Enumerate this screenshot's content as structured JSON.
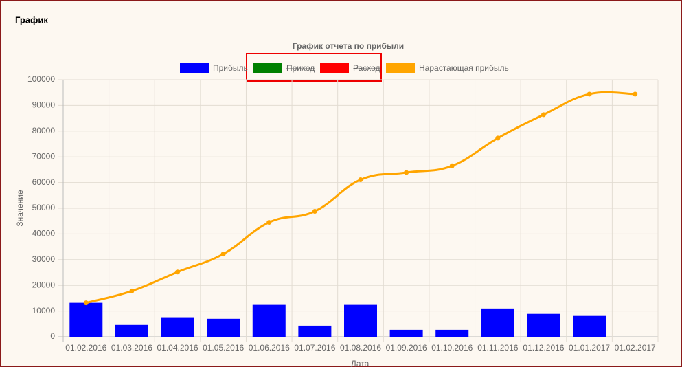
{
  "header": {
    "title": "График"
  },
  "chart_data": {
    "type": "bar",
    "title": "График отчета по прибыли",
    "x_label": "Дата",
    "y_label": "Значение",
    "categories": [
      "01.02.2016",
      "01.03.2016",
      "01.04.2016",
      "01.05.2016",
      "01.06.2016",
      "01.07.2016",
      "01.08.2016",
      "01.09.2016",
      "01.10.2016",
      "01.11.2016",
      "01.12.2016",
      "01.01.2017",
      "01.02.2017"
    ],
    "series": [
      {
        "name": "Прибыль",
        "color": "#0000ff",
        "type": "bar",
        "values": [
          13200,
          4600,
          7600,
          7000,
          12400,
          4300,
          12400,
          2700,
          2700,
          11000,
          8900,
          8100,
          0
        ]
      },
      {
        "name": "Приход",
        "color": "#008000",
        "type": "bar",
        "hidden": true,
        "values": [
          null,
          null,
          null,
          null,
          null,
          null,
          null,
          null,
          null,
          null,
          null,
          null,
          null
        ]
      },
      {
        "name": "Расход",
        "color": "#ff0000",
        "type": "bar",
        "hidden": true,
        "values": [
          null,
          null,
          null,
          null,
          null,
          null,
          null,
          null,
          null,
          null,
          null,
          null,
          null
        ]
      },
      {
        "name": "Нарастающая прибыль",
        "color": "#ffa500",
        "type": "line",
        "values": [
          13200,
          17800,
          25200,
          32200,
          44500,
          48800,
          61100,
          63900,
          66500,
          77300,
          86400,
          94400,
          94400
        ]
      }
    ],
    "ylim": [
      0,
      100000
    ],
    "yticks": [
      0,
      10000,
      20000,
      30000,
      40000,
      50000,
      60000,
      70000,
      80000,
      90000,
      100000
    ],
    "grid": true,
    "legend": "top"
  }
}
